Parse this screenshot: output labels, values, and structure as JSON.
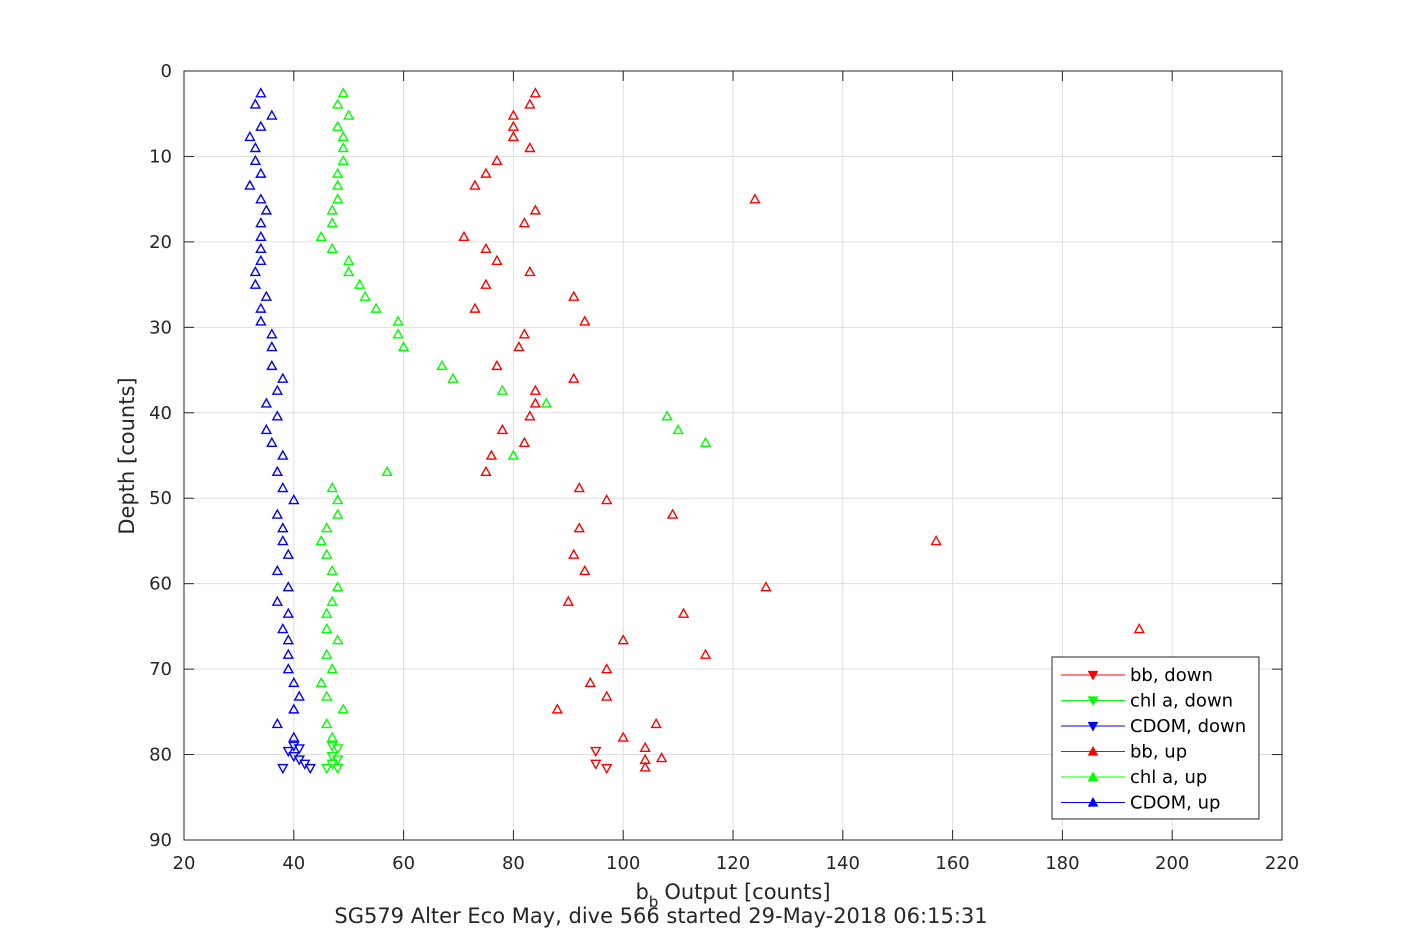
{
  "chart_data": {
    "type": "scatter",
    "xlabel": "Output [counts]",
    "xlabel_symbol": "b",
    "xlabel_subscript": "b",
    "ylabel": "Depth [counts]",
    "caption": "SG579 Alter Eco May, dive 566 started 29-May-2018 06:15:31",
    "xlim": [
      20,
      220
    ],
    "ylim": [
      0,
      90
    ],
    "y_reversed": true,
    "grid": true,
    "xticks": [
      "20",
      "40",
      "60",
      "80",
      "100",
      "120",
      "140",
      "160",
      "180",
      "200",
      "220"
    ],
    "yticks": [
      "0",
      "10",
      "20",
      "30",
      "40",
      "50",
      "60",
      "70",
      "80",
      "90"
    ],
    "legend_position": "bottom-right",
    "series": [
      {
        "name": "bb, down",
        "color": "#ff0000",
        "marker": "triangle-down",
        "points": [
          [
            95,
            79.6
          ],
          [
            95,
            81.1
          ],
          [
            97,
            81.6
          ]
        ]
      },
      {
        "name": "chl a, down",
        "color": "#00ff00",
        "marker": "triangle-down",
        "points": [
          [
            47,
            79
          ],
          [
            48,
            79.3
          ],
          [
            47,
            80.2
          ],
          [
            48,
            80.6
          ],
          [
            47,
            81.1
          ],
          [
            46,
            81.6
          ],
          [
            48,
            81.6
          ]
        ]
      },
      {
        "name": "CDOM, down",
        "color": "#0000ff",
        "marker": "triangle-down",
        "points": [
          [
            40,
            79
          ],
          [
            41,
            79.3
          ],
          [
            39,
            79.6
          ],
          [
            40,
            80.2
          ],
          [
            41,
            80.6
          ],
          [
            42,
            81.1
          ],
          [
            38,
            81.6
          ],
          [
            43,
            81.6
          ]
        ]
      },
      {
        "name": "bb, up",
        "color": "#ff0000",
        "marker": "triangle-up",
        "points": [
          [
            84,
            2.6
          ],
          [
            83,
            3.9
          ],
          [
            80,
            5.2
          ],
          [
            80,
            6.5
          ],
          [
            80,
            7.7
          ],
          [
            83,
            9
          ],
          [
            77,
            10.5
          ],
          [
            75,
            12
          ],
          [
            73,
            13.4
          ],
          [
            124,
            15
          ],
          [
            84,
            16.3
          ],
          [
            82,
            17.8
          ],
          [
            71,
            19.4
          ],
          [
            75,
            20.8
          ],
          [
            77,
            22.2
          ],
          [
            83,
            23.5
          ],
          [
            75,
            25
          ],
          [
            91,
            26.4
          ],
          [
            73,
            27.8
          ],
          [
            93,
            29.3
          ],
          [
            82,
            30.8
          ],
          [
            81,
            32.3
          ],
          [
            77,
            34.5
          ],
          [
            91,
            36
          ],
          [
            84,
            37.4
          ],
          [
            84,
            38.9
          ],
          [
            83,
            40.4
          ],
          [
            78,
            42
          ],
          [
            82,
            43.5
          ],
          [
            76,
            45
          ],
          [
            75,
            46.9
          ],
          [
            92,
            48.8
          ],
          [
            97,
            50.2
          ],
          [
            109,
            51.9
          ],
          [
            92,
            53.5
          ],
          [
            157,
            55
          ],
          [
            91,
            56.6
          ],
          [
            93,
            58.5
          ],
          [
            126,
            60.4
          ],
          [
            90,
            62.1
          ],
          [
            111,
            63.5
          ],
          [
            194,
            65.3
          ],
          [
            100,
            66.6
          ],
          [
            97,
            70
          ],
          [
            115,
            68.3
          ],
          [
            94,
            71.6
          ],
          [
            97,
            73.2
          ],
          [
            88,
            74.7
          ],
          [
            106,
            76.4
          ],
          [
            100,
            78
          ],
          [
            104,
            79.2
          ],
          [
            107,
            80.4
          ],
          [
            104,
            80.6
          ],
          [
            104,
            81.5
          ]
        ]
      },
      {
        "name": "chl a, up",
        "color": "#00ff00",
        "marker": "triangle-up",
        "points": [
          [
            49,
            2.6
          ],
          [
            48,
            3.9
          ],
          [
            50,
            5.2
          ],
          [
            48,
            6.5
          ],
          [
            49,
            7.7
          ],
          [
            49,
            9
          ],
          [
            49,
            10.5
          ],
          [
            48,
            12
          ],
          [
            48,
            13.4
          ],
          [
            48,
            15
          ],
          [
            47,
            16.3
          ],
          [
            47,
            17.8
          ],
          [
            45,
            19.4
          ],
          [
            47,
            20.8
          ],
          [
            50,
            22.2
          ],
          [
            50,
            23.5
          ],
          [
            52,
            25
          ],
          [
            53,
            26.4
          ],
          [
            55,
            27.8
          ],
          [
            59,
            29.3
          ],
          [
            59,
            30.8
          ],
          [
            60,
            32.3
          ],
          [
            67,
            34.5
          ],
          [
            69,
            36
          ],
          [
            78,
            37.4
          ],
          [
            86,
            38.9
          ],
          [
            108,
            40.4
          ],
          [
            110,
            42
          ],
          [
            115,
            43.5
          ],
          [
            80,
            45
          ],
          [
            57,
            46.9
          ],
          [
            47,
            48.8
          ],
          [
            48,
            50.2
          ],
          [
            48,
            51.9
          ],
          [
            46,
            53.5
          ],
          [
            45,
            55
          ],
          [
            46,
            56.6
          ],
          [
            47,
            58.5
          ],
          [
            48,
            60.4
          ],
          [
            47,
            62.1
          ],
          [
            46,
            63.5
          ],
          [
            46,
            65.3
          ],
          [
            48,
            66.6
          ],
          [
            46,
            68.3
          ],
          [
            47,
            70
          ],
          [
            45,
            71.6
          ],
          [
            46,
            73.2
          ],
          [
            49,
            74.7
          ],
          [
            46,
            76.4
          ],
          [
            47,
            78
          ]
        ]
      },
      {
        "name": "CDOM, up",
        "color": "#0000ff",
        "marker": "triangle-up",
        "points": [
          [
            34,
            2.6
          ],
          [
            33,
            3.9
          ],
          [
            36,
            5.2
          ],
          [
            34,
            6.5
          ],
          [
            32,
            7.7
          ],
          [
            33,
            9
          ],
          [
            33,
            10.5
          ],
          [
            34,
            12
          ],
          [
            32,
            13.4
          ],
          [
            34,
            15
          ],
          [
            35,
            16.3
          ],
          [
            34,
            17.8
          ],
          [
            34,
            19.4
          ],
          [
            34,
            20.8
          ],
          [
            34,
            22.2
          ],
          [
            33,
            23.5
          ],
          [
            33,
            25
          ],
          [
            35,
            26.4
          ],
          [
            34,
            27.8
          ],
          [
            34,
            29.3
          ],
          [
            36,
            30.8
          ],
          [
            36,
            32.3
          ],
          [
            36,
            34.5
          ],
          [
            38,
            36
          ],
          [
            37,
            37.4
          ],
          [
            35,
            38.9
          ],
          [
            37,
            40.4
          ],
          [
            35,
            42
          ],
          [
            36,
            43.5
          ],
          [
            38,
            45
          ],
          [
            37,
            46.9
          ],
          [
            38,
            48.8
          ],
          [
            40,
            50.2
          ],
          [
            37,
            51.9
          ],
          [
            38,
            53.5
          ],
          [
            38,
            55
          ],
          [
            39,
            56.6
          ],
          [
            37,
            58.5
          ],
          [
            39,
            60.4
          ],
          [
            37,
            62.1
          ],
          [
            39,
            63.5
          ],
          [
            38,
            65.3
          ],
          [
            39,
            66.6
          ],
          [
            39,
            68.3
          ],
          [
            39,
            70
          ],
          [
            40,
            71.6
          ],
          [
            41,
            73.2
          ],
          [
            40,
            74.7
          ],
          [
            37,
            76.4
          ],
          [
            40,
            78
          ]
        ]
      }
    ]
  }
}
